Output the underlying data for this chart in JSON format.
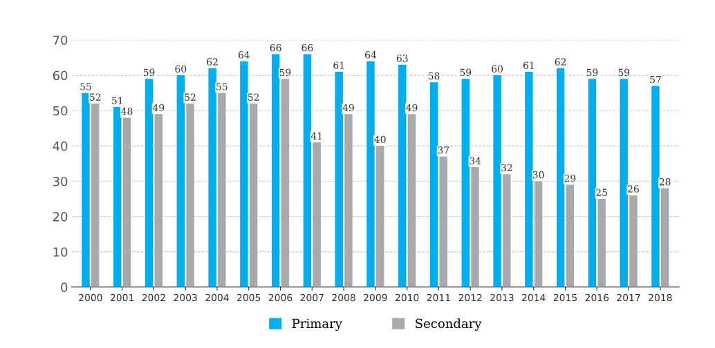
{
  "chart_data": {
    "type": "bar",
    "categories": [
      "2000",
      "2001",
      "2002",
      "2003",
      "2004",
      "2005",
      "2006",
      "2007",
      "2008",
      "2009",
      "2010",
      "2011",
      "2012",
      "2013",
      "2014",
      "2015",
      "2016",
      "2017",
      "2018"
    ],
    "series": [
      {
        "name": "Primary",
        "color": "#00aeef",
        "values": [
          55,
          51,
          59,
          60,
          62,
          64,
          66,
          66,
          61,
          64,
          63,
          58,
          59,
          60,
          61,
          62,
          59,
          59,
          57
        ]
      },
      {
        "name": "Secondary",
        "color": "#a7a9ac",
        "values": [
          52,
          48,
          49,
          52,
          55,
          52,
          59,
          41,
          49,
          40,
          49,
          37,
          34,
          32,
          30,
          29,
          25,
          26,
          28
        ]
      }
    ],
    "ylim": [
      0,
      70
    ],
    "yticks": [
      0,
      10,
      20,
      30,
      40,
      50,
      60,
      70
    ],
    "grid": "y",
    "legend": "bottom",
    "data_labels": true
  }
}
